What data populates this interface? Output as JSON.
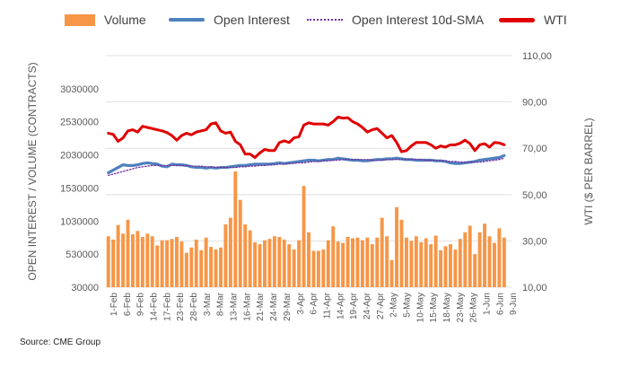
{
  "legend": {
    "volume": "Volume",
    "open_interest": "Open Interest",
    "oi_sma": "Open Interest 10d-SMA",
    "wti": "WTI"
  },
  "source": "Source: CME Group",
  "colors": {
    "volume": "#f79646",
    "open_interest": "#4f81bd",
    "oi_sma": "#7030a0",
    "wti": "#e00000",
    "axis_text": "#595959",
    "grid": "#d9d9d9"
  },
  "chart_data": {
    "type": "bar",
    "title": "",
    "left_axis": {
      "label": "OPEN INTEREST / VOLUME (CONTRACTS)",
      "ticks": [
        "30000",
        "530000",
        "1030000",
        "1530000",
        "2030000",
        "2530000",
        "3030000"
      ],
      "ylim": [
        30000,
        3530000
      ]
    },
    "right_axis": {
      "label": "WTI ($ PER BARREL)",
      "ticks": [
        "10,00",
        "30,00",
        "50,00",
        "70,00",
        "90,00",
        "110,00"
      ],
      "ylim": [
        10,
        110
      ]
    },
    "x_tick_labels": [
      "1-Feb",
      "6-Feb",
      "9-Feb",
      "14-Feb",
      "17-Feb",
      "23-Feb",
      "28-Feb",
      "3-Mar",
      "8-Mar",
      "13-Mar",
      "16-Mar",
      "21-Mar",
      "24-Mar",
      "29-Mar",
      "3-Apr",
      "6-Apr",
      "11-Apr",
      "14-Apr",
      "19-Apr",
      "24-Apr",
      "27-Apr",
      "2-May",
      "5-May",
      "10-May",
      "15-May",
      "18-May",
      "23-May",
      "26-May",
      "1-Jun",
      "6-Jun",
      "9-Jun"
    ],
    "series": [
      {
        "name": "Volume",
        "type": "bar",
        "axis": "left",
        "values": [
          800000,
          750000,
          970000,
          840000,
          1050000,
          830000,
          880000,
          790000,
          840000,
          800000,
          660000,
          740000,
          740000,
          760000,
          790000,
          720000,
          550000,
          630000,
          750000,
          590000,
          780000,
          640000,
          600000,
          630000,
          980000,
          1080000,
          1780000,
          1350000,
          980000,
          890000,
          710000,
          680000,
          740000,
          760000,
          800000,
          790000,
          750000,
          680000,
          600000,
          740000,
          1560000,
          860000,
          580000,
          580000,
          600000,
          740000,
          950000,
          720000,
          700000,
          790000,
          770000,
          780000,
          740000,
          780000,
          680000,
          780000,
          1080000,
          800000,
          440000,
          1240000,
          1050000,
          780000,
          730000,
          800000,
          710000,
          770000,
          680000,
          810000,
          590000,
          650000,
          680000,
          600000,
          760000,
          860000,
          960000,
          530000,
          860000,
          990000,
          800000,
          700000,
          920000,
          780000
        ]
      },
      {
        "name": "Open Interest",
        "type": "line",
        "axis": "left",
        "values": [
          1760000,
          1800000,
          1840000,
          1880000,
          1870000,
          1870000,
          1880000,
          1900000,
          1910000,
          1900000,
          1890000,
          1860000,
          1850000,
          1890000,
          1880000,
          1880000,
          1870000,
          1850000,
          1840000,
          1840000,
          1830000,
          1840000,
          1830000,
          1840000,
          1840000,
          1850000,
          1860000,
          1870000,
          1870000,
          1880000,
          1890000,
          1890000,
          1890000,
          1890000,
          1900000,
          1910000,
          1900000,
          1910000,
          1920000,
          1930000,
          1940000,
          1950000,
          1950000,
          1940000,
          1950000,
          1960000,
          1960000,
          1980000,
          1970000,
          1960000,
          1950000,
          1950000,
          1940000,
          1940000,
          1950000,
          1960000,
          1960000,
          1970000,
          1970000,
          1980000,
          1970000,
          1960000,
          1960000,
          1950000,
          1950000,
          1950000,
          1950000,
          1940000,
          1940000,
          1930000,
          1910000,
          1900000,
          1900000,
          1910000,
          1920000,
          1930000,
          1950000,
          1960000,
          1970000,
          1980000,
          1990000,
          2020000
        ]
      },
      {
        "name": "Open Interest 10d-SMA",
        "type": "line",
        "axis": "left",
        "values": [
          1720000,
          1740000,
          1760000,
          1780000,
          1800000,
          1820000,
          1840000,
          1850000,
          1860000,
          1870000,
          1870000,
          1870000,
          1870000,
          1870000,
          1870000,
          1870000,
          1870000,
          1860000,
          1860000,
          1860000,
          1850000,
          1850000,
          1840000,
          1840000,
          1840000,
          1840000,
          1840000,
          1850000,
          1850000,
          1860000,
          1860000,
          1870000,
          1870000,
          1880000,
          1880000,
          1890000,
          1890000,
          1900000,
          1900000,
          1910000,
          1910000,
          1920000,
          1930000,
          1930000,
          1940000,
          1940000,
          1950000,
          1950000,
          1960000,
          1960000,
          1960000,
          1960000,
          1960000,
          1960000,
          1950000,
          1950000,
          1950000,
          1960000,
          1960000,
          1960000,
          1960000,
          1960000,
          1960000,
          1960000,
          1960000,
          1950000,
          1950000,
          1950000,
          1940000,
          1940000,
          1930000,
          1930000,
          1920000,
          1920000,
          1920000,
          1920000,
          1920000,
          1930000,
          1940000,
          1950000,
          1960000,
          1980000
        ]
      },
      {
        "name": "WTI",
        "type": "line",
        "axis": "right",
        "values": [
          76.5,
          76,
          73,
          74.5,
          77.5,
          78,
          77,
          79.5,
          79,
          78.5,
          78,
          77.5,
          76.8,
          75.5,
          73.5,
          75.5,
          76.5,
          75.8,
          77,
          77.5,
          78,
          80.5,
          81,
          77.5,
          76.5,
          77,
          73,
          71.5,
          67.5,
          67.5,
          66,
          68,
          69.5,
          69,
          69,
          72.5,
          73.2,
          72.5,
          74.5,
          75,
          80,
          81,
          80.5,
          80.5,
          80.5,
          80,
          81.5,
          83.5,
          83,
          83.2,
          81.5,
          80.5,
          79,
          77,
          78,
          78.5,
          76.5,
          74.5,
          75.5,
          72.5,
          68.5,
          69,
          71,
          72.5,
          72.5,
          72.5,
          71.5,
          70,
          71,
          70.5,
          71.5,
          71.5,
          72.2,
          73.5,
          72,
          69,
          71.5,
          72,
          70.5,
          72.5,
          72.3,
          71.5
        ]
      }
    ]
  }
}
